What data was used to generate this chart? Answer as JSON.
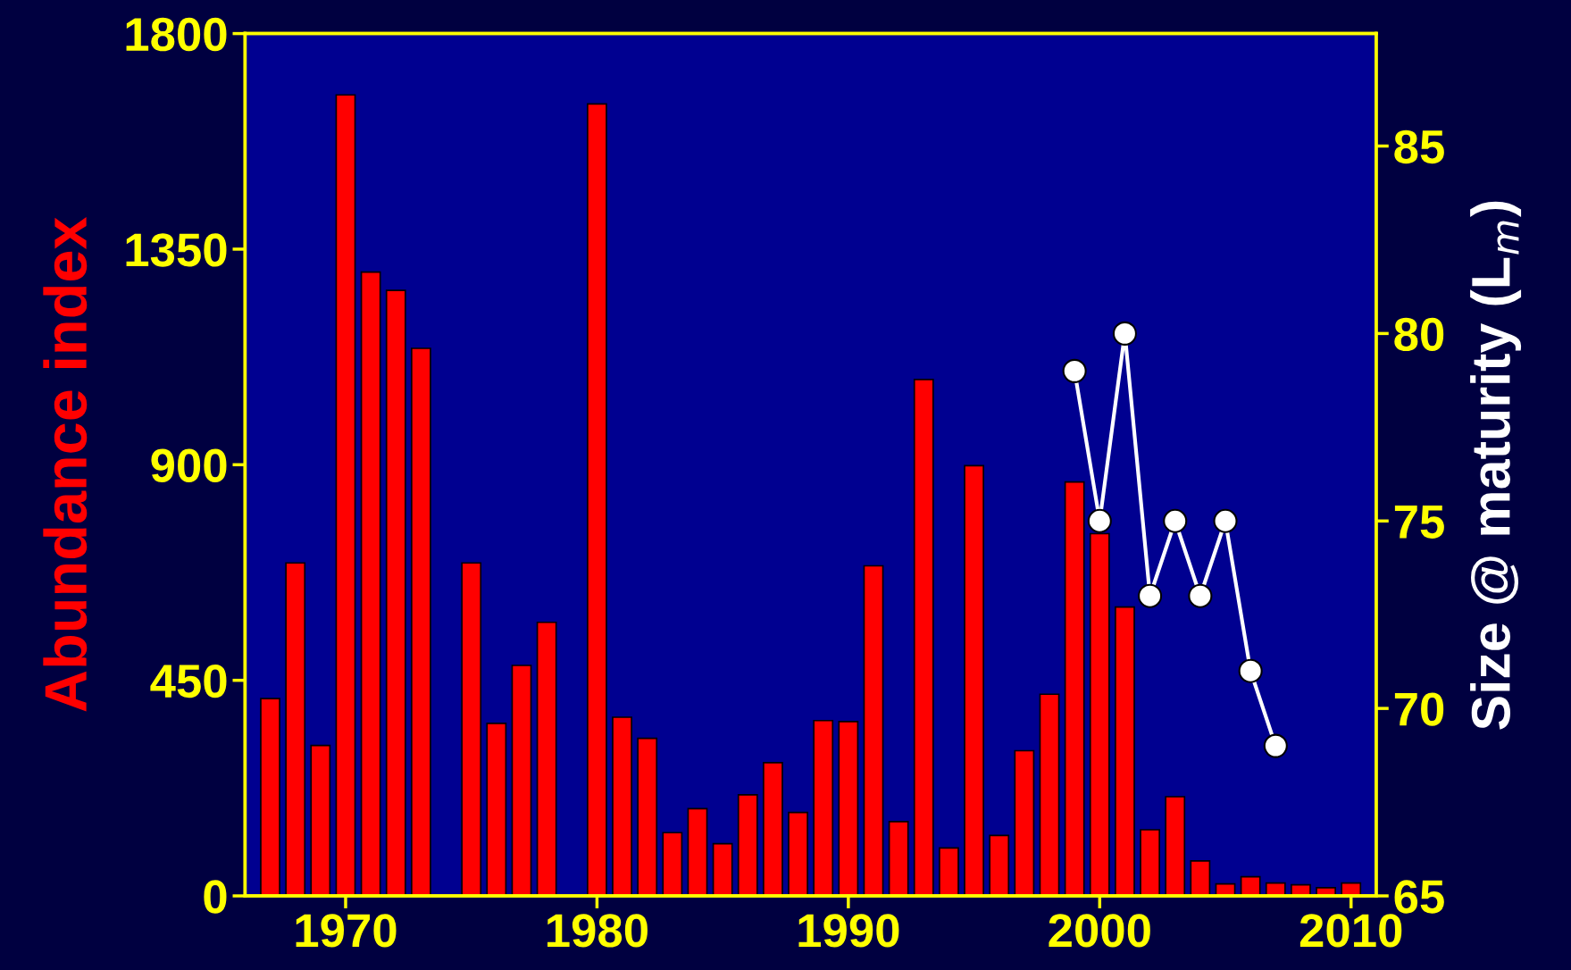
{
  "chart_data": {
    "type": "bar",
    "ylabel": "Abundance index",
    "y2label": "Size @ maturity (L$_{m}$)",
    "xlim": [
      1966,
      2011
    ],
    "xticks": [
      1970,
      1980,
      1990,
      2000,
      2010
    ],
    "ylim": [
      0,
      1800
    ],
    "yticks": [
      0,
      450,
      900,
      1350,
      1800
    ],
    "y2lim": [
      65,
      88
    ],
    "y2ticks": [
      65,
      70,
      75,
      80,
      85
    ],
    "grid": false,
    "legend": false,
    "series": [
      {
        "color": "#ff0000",
        "x": [
          1967,
          1968,
          1969,
          1970,
          1971,
          1972,
          1973,
          1975,
          1976,
          1977,
          1978,
          1980,
          1981,
          1982,
          1983,
          1984,
          1985,
          1986,
          1987,
          1988,
          1989,
          1990,
          1991,
          1992,
          1993,
          1994,
          1995,
          1996,
          1997,
          1998,
          1999,
          2000,
          2001,
          2002,
          2003,
          2004,
          2005,
          2006,
          2007,
          2008,
          2009,
          2010
        ],
        "values": [
          412,
          695,
          314,
          1672,
          1302,
          1264,
          1143,
          695,
          360,
          481,
          571,
          1653,
          373,
          329,
          132,
          182,
          109,
          211,
          278,
          174,
          366,
          364,
          689,
          155,
          1078,
          100,
          898,
          126,
          303,
          421,
          864,
          756,
          603,
          138,
          207,
          73,
          25,
          40,
          27,
          23,
          17,
          27
        ]
      },
      {
        "type": "line",
        "axis": "y2",
        "color": "#ffffff",
        "marker": "circle",
        "line_style": "solid",
        "x": [
          1999,
          2000,
          2001,
          2002,
          2003,
          2004,
          2005,
          2006,
          2007
        ],
        "values": [
          79,
          75,
          80,
          73,
          75,
          73,
          75,
          71,
          69
        ]
      }
    ]
  }
}
